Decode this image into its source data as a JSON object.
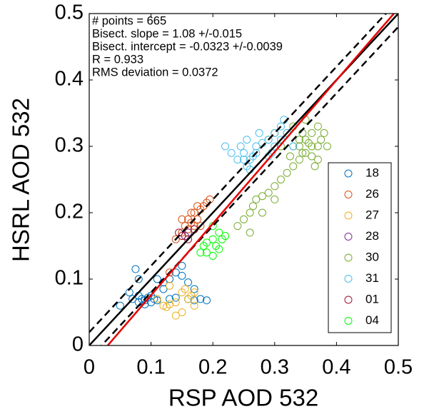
{
  "chart_data": {
    "type": "scatter",
    "xlabel": "RSP AOD 532",
    "ylabel": "HSRL AOD 532",
    "xlim": [
      0,
      0.5
    ],
    "ylim": [
      0,
      0.5
    ],
    "xticks": [
      0,
      0.1,
      0.2,
      0.3,
      0.4,
      0.5
    ],
    "yticks": [
      0,
      0.1,
      0.2,
      0.3,
      0.4,
      0.5
    ],
    "grid": false,
    "legend": "right",
    "annotations": [
      "# points = 665",
      "Bisect. slope = 1.08 +/-0.015",
      "Bisect. intercept = -0.0323 +/-0.0039",
      "R = 0.933",
      "RMS deviation = 0.0372"
    ],
    "reference_lines": [
      {
        "slope": 1,
        "intercept": 0,
        "color": "#000000",
        "dashed": false
      },
      {
        "slope": 1,
        "intercept": 0.02,
        "color": "#000000",
        "dashed": true
      },
      {
        "slope": 1,
        "intercept": -0.02,
        "color": "#000000",
        "dashed": true
      },
      {
        "slope": 1.08,
        "intercept": -0.0323,
        "color": "#e60000",
        "dashed": false
      }
    ],
    "series": [
      {
        "name": "18",
        "color": "#0072bd",
        "x": [
          0.07,
          0.08,
          0.085,
          0.09,
          0.095,
          0.1,
          0.1,
          0.105,
          0.11,
          0.09,
          0.08,
          0.075,
          0.065,
          0.13,
          0.14,
          0.15,
          0.16,
          0.17,
          0.13,
          0.14,
          0.16,
          0.17,
          0.18,
          0.19,
          0.12,
          0.11,
          0.15,
          0.05,
          0.08,
          0.12
        ],
        "y": [
          0.07,
          0.065,
          0.07,
          0.068,
          0.072,
          0.065,
          0.075,
          0.07,
          0.068,
          0.062,
          0.075,
          0.115,
          0.08,
          0.1,
          0.11,
          0.105,
          0.095,
          0.085,
          0.07,
          0.072,
          0.07,
          0.068,
          0.07,
          0.068,
          0.085,
          0.1,
          0.12,
          0.06,
          0.1,
          0.095
        ]
      },
      {
        "name": "26",
        "color": "#d95319",
        "x": [
          0.15,
          0.155,
          0.16,
          0.165,
          0.17,
          0.175,
          0.18,
          0.185,
          0.19,
          0.16,
          0.17,
          0.15,
          0.18,
          0.14,
          0.195,
          0.13,
          0.165,
          0.175
        ],
        "y": [
          0.17,
          0.18,
          0.19,
          0.185,
          0.2,
          0.19,
          0.205,
          0.21,
          0.215,
          0.175,
          0.18,
          0.19,
          0.18,
          0.16,
          0.22,
          0.11,
          0.2,
          0.21
        ]
      },
      {
        "name": "27",
        "color": "#edb120",
        "x": [
          0.12,
          0.125,
          0.13,
          0.14,
          0.15,
          0.155,
          0.16,
          0.165,
          0.17,
          0.15,
          0.14,
          0.11,
          0.13,
          0.17
        ],
        "y": [
          0.06,
          0.058,
          0.062,
          0.065,
          0.08,
          0.085,
          0.07,
          0.075,
          0.08,
          0.05,
          0.045,
          0.07,
          0.09,
          0.06
        ]
      },
      {
        "name": "28",
        "color": "#7e2f8e",
        "x": [
          0.155,
          0.16
        ],
        "y": [
          0.165,
          0.17
        ]
      },
      {
        "name": "30",
        "color": "#77ac30",
        "x": [
          0.25,
          0.26,
          0.265,
          0.27,
          0.28,
          0.29,
          0.3,
          0.31,
          0.32,
          0.33,
          0.34,
          0.35,
          0.36,
          0.37,
          0.33,
          0.34,
          0.345,
          0.35,
          0.36,
          0.37,
          0.38,
          0.32,
          0.33,
          0.35,
          0.34,
          0.355,
          0.36,
          0.37,
          0.385,
          0.31,
          0.3,
          0.29,
          0.325,
          0.24,
          0.26,
          0.28,
          0.3,
          0.345,
          0.365,
          0.375
        ],
        "y": [
          0.19,
          0.2,
          0.21,
          0.22,
          0.225,
          0.23,
          0.24,
          0.25,
          0.26,
          0.27,
          0.28,
          0.29,
          0.3,
          0.3,
          0.3,
          0.31,
          0.32,
          0.31,
          0.32,
          0.33,
          0.32,
          0.32,
          0.33,
          0.34,
          0.3,
          0.305,
          0.285,
          0.28,
          0.3,
          0.3,
          0.32,
          0.31,
          0.285,
          0.18,
          0.17,
          0.2,
          0.22,
          0.29,
          0.27,
          0.31
        ]
      },
      {
        "name": "31",
        "color": "#4dbeee",
        "x": [
          0.25,
          0.255,
          0.26,
          0.265,
          0.27,
          0.25,
          0.245,
          0.255,
          0.27,
          0.28,
          0.29,
          0.3,
          0.31,
          0.32,
          0.315,
          0.3,
          0.295,
          0.26,
          0.22,
          0.23,
          0.33,
          0.31,
          0.29,
          0.275,
          0.24
        ],
        "y": [
          0.28,
          0.27,
          0.28,
          0.285,
          0.29,
          0.29,
          0.3,
          0.31,
          0.3,
          0.305,
          0.31,
          0.32,
          0.33,
          0.32,
          0.34,
          0.3,
          0.29,
          0.265,
          0.3,
          0.29,
          0.3,
          0.31,
          0.285,
          0.32,
          0.28
        ]
      },
      {
        "name": "01",
        "color": "#a2142f",
        "x": [
          0.15,
          0.16,
          0.17,
          0.145
        ],
        "y": [
          0.165,
          0.16,
          0.175,
          0.17
        ]
      },
      {
        "name": "04",
        "color": "#00ff00",
        "x": [
          0.18,
          0.185,
          0.19,
          0.2,
          0.205,
          0.21,
          0.2,
          0.19,
          0.21,
          0.215,
          0.22,
          0.2
        ],
        "y": [
          0.14,
          0.15,
          0.155,
          0.16,
          0.15,
          0.145,
          0.135,
          0.14,
          0.17,
          0.16,
          0.165,
          0.18
        ]
      }
    ]
  }
}
